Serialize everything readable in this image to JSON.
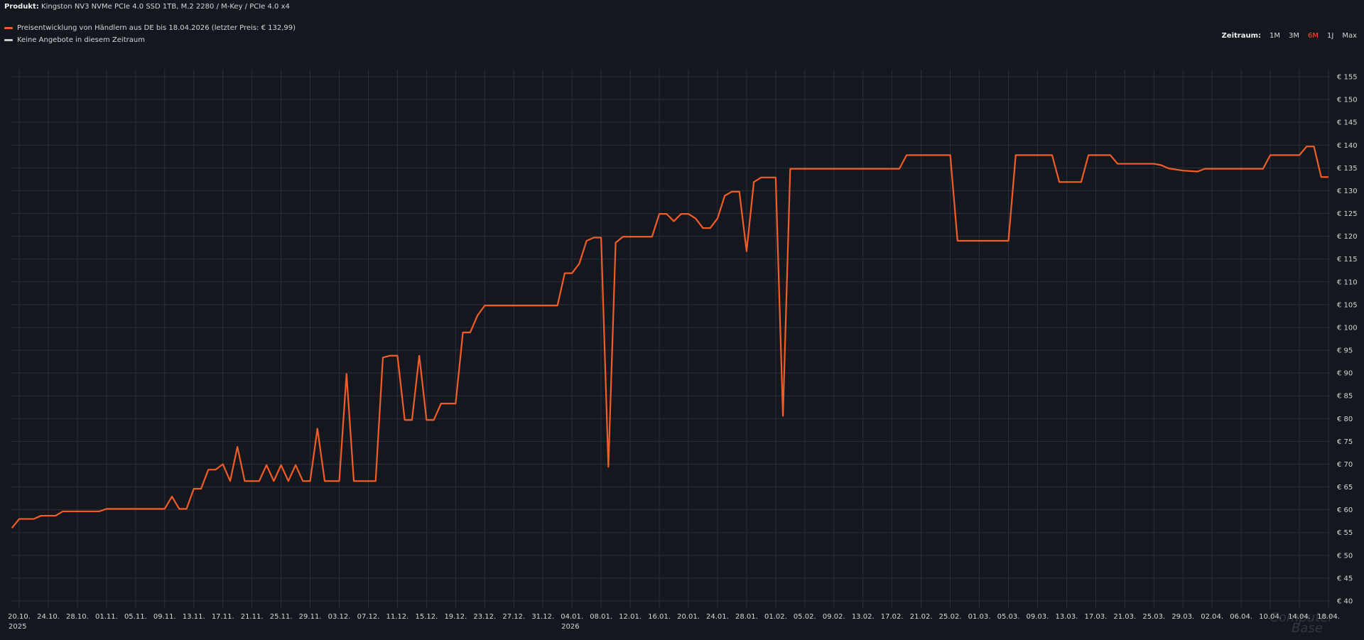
{
  "header": {
    "product_label": "Produkt:",
    "product": "Kingston NV3 NVMe PCIe 4.0 SSD 1TB, M.2 2280 / M-Key / PCIe 4.0 x4"
  },
  "controls": {
    "label": "Zeitraum:",
    "options": [
      "1M",
      "3M",
      "6M",
      "1J",
      "Max"
    ],
    "active": "6M"
  },
  "legend_extra": {
    "label": "Keine Angebote in diesem Zeitraum",
    "color": "#c9c9c9"
  },
  "watermark": [
    "Computer",
    "Base"
  ],
  "chart_data": {
    "type": "line",
    "grid": true,
    "xlim": [
      "2025-10-19",
      "2026-04-18"
    ],
    "ylim": [
      40,
      156
    ],
    "yticks": [
      {
        "value": 155,
        "label": "€ 155"
      },
      {
        "value": 150,
        "label": "€ 150"
      },
      {
        "value": 145,
        "label": "€ 145"
      },
      {
        "value": 140,
        "label": "€ 140"
      },
      {
        "value": 135,
        "label": "€ 135"
      },
      {
        "value": 130,
        "label": "€ 130"
      },
      {
        "value": 125,
        "label": "€ 125"
      },
      {
        "value": 120,
        "label": "€ 120"
      },
      {
        "value": 115,
        "label": "€ 115"
      },
      {
        "value": 110,
        "label": "€ 110"
      },
      {
        "value": 105,
        "label": "€ 105"
      },
      {
        "value": 100,
        "label": "€ 100"
      },
      {
        "value": 95,
        "label": "€ 95"
      },
      {
        "value": 90,
        "label": "€ 90"
      },
      {
        "value": 85,
        "label": "€ 85"
      },
      {
        "value": 80,
        "label": "€ 80"
      },
      {
        "value": 75,
        "label": "€ 75"
      },
      {
        "value": 70,
        "label": "€ 70"
      },
      {
        "value": 65,
        "label": "€ 65"
      },
      {
        "value": 60,
        "label": "€ 60"
      },
      {
        "value": 55,
        "label": "€ 55"
      },
      {
        "value": 50,
        "label": "€ 50"
      },
      {
        "value": 45,
        "label": "€ 45"
      },
      {
        "value": 40,
        "label": "€ 40"
      }
    ],
    "xticks": [
      {
        "value": "2025-10-20",
        "label": "20.10."
      },
      {
        "value": "2025-10-24",
        "label": "24.10."
      },
      {
        "value": "2025-10-28",
        "label": "28.10."
      },
      {
        "value": "2025-11-01",
        "label": "01.11."
      },
      {
        "value": "2025-11-05",
        "label": "05.11."
      },
      {
        "value": "2025-11-09",
        "label": "09.11."
      },
      {
        "value": "2025-11-13",
        "label": "13.11."
      },
      {
        "value": "2025-11-17",
        "label": "17.11."
      },
      {
        "value": "2025-11-21",
        "label": "21.11."
      },
      {
        "value": "2025-11-25",
        "label": "25.11."
      },
      {
        "value": "2025-11-29",
        "label": "29.11."
      },
      {
        "value": "2025-12-03",
        "label": "03.12."
      },
      {
        "value": "2025-12-07",
        "label": "07.12."
      },
      {
        "value": "2025-12-11",
        "label": "11.12."
      },
      {
        "value": "2025-12-15",
        "label": "15.12."
      },
      {
        "value": "2025-12-19",
        "label": "19.12."
      },
      {
        "value": "2025-12-23",
        "label": "23.12."
      },
      {
        "value": "2025-12-27",
        "label": "27.12."
      },
      {
        "value": "2025-12-31",
        "label": "31.12."
      },
      {
        "value": "2026-01-04",
        "label": "04.01."
      },
      {
        "value": "2026-01-08",
        "label": "08.01."
      },
      {
        "value": "2026-01-12",
        "label": "12.01."
      },
      {
        "value": "2026-01-16",
        "label": "16.01."
      },
      {
        "value": "2026-01-20",
        "label": "20.01."
      },
      {
        "value": "2026-01-24",
        "label": "24.01."
      },
      {
        "value": "2026-01-28",
        "label": "28.01."
      },
      {
        "value": "2026-02-01",
        "label": "01.02."
      },
      {
        "value": "2026-02-05",
        "label": "05.02."
      },
      {
        "value": "2026-02-09",
        "label": "09.02."
      },
      {
        "value": "2026-02-13",
        "label": "13.02."
      },
      {
        "value": "2026-02-17",
        "label": "17.02."
      },
      {
        "value": "2026-02-21",
        "label": "21.02."
      },
      {
        "value": "2026-02-25",
        "label": "25.02."
      },
      {
        "value": "2026-03-01",
        "label": "01.03."
      },
      {
        "value": "2026-03-05",
        "label": "05.03."
      },
      {
        "value": "2026-03-09",
        "label": "09.03."
      },
      {
        "value": "2026-03-13",
        "label": "13.03."
      },
      {
        "value": "2026-03-17",
        "label": "17.03."
      },
      {
        "value": "2026-03-21",
        "label": "21.03."
      },
      {
        "value": "2026-03-25",
        "label": "25.03."
      },
      {
        "value": "2026-03-29",
        "label": "29.03."
      },
      {
        "value": "2026-04-02",
        "label": "02.04."
      },
      {
        "value": "2026-04-06",
        "label": "06.04."
      },
      {
        "value": "2026-04-10",
        "label": "10.04."
      },
      {
        "value": "2026-04-14",
        "label": "14.04."
      },
      {
        "value": "2026-04-18",
        "label": "18.04."
      }
    ],
    "x_year_labels": [
      {
        "value": "2025-10-20",
        "label": "2025"
      },
      {
        "value": "2026-01-04",
        "label": "2026"
      }
    ],
    "x": [
      "2025-10-19",
      "2025-10-20",
      "2025-10-22",
      "2025-10-23",
      "2025-10-25",
      "2025-10-26",
      "2025-10-31",
      "2025-11-01",
      "2025-11-09",
      "2025-11-10",
      "2025-11-11",
      "2025-11-12",
      "2025-11-13",
      "2025-11-14",
      "2025-11-15",
      "2025-11-16",
      "2025-11-17",
      "2025-11-18",
      "2025-11-19",
      "2025-11-20",
      "2025-11-22",
      "2025-11-23",
      "2025-11-24",
      "2025-11-25",
      "2025-11-26",
      "2025-11-27",
      "2025-11-28",
      "2025-11-29",
      "2025-11-30",
      "2025-12-01",
      "2025-12-03",
      "2025-12-04",
      "2025-12-05",
      "2025-12-08",
      "2025-12-09",
      "2025-12-10",
      "2025-12-11",
      "2025-12-12",
      "2025-12-13",
      "2025-12-14",
      "2025-12-15",
      "2025-12-16",
      "2025-12-17",
      "2025-12-19",
      "2025-12-20",
      "2025-12-21",
      "2025-12-22",
      "2025-12-23",
      "2026-01-02",
      "2026-01-03",
      "2026-01-04",
      "2026-01-05",
      "2026-01-06",
      "2026-01-07",
      "2026-01-08",
      "2026-01-09",
      "2026-01-10",
      "2026-01-11",
      "2026-01-15",
      "2026-01-16",
      "2026-01-17",
      "2026-01-18",
      "2026-01-19",
      "2026-01-20",
      "2026-01-21",
      "2026-01-22",
      "2026-01-23",
      "2026-01-24",
      "2026-01-25",
      "2026-01-26",
      "2026-01-27",
      "2026-01-28",
      "2026-01-29",
      "2026-01-30",
      "2026-02-01",
      "2026-02-02",
      "2026-02-03",
      "2026-02-18",
      "2026-02-19",
      "2026-02-25",
      "2026-02-26",
      "2026-03-05",
      "2026-03-06",
      "2026-03-11",
      "2026-03-12",
      "2026-03-15",
      "2026-03-16",
      "2026-03-19",
      "2026-03-20",
      "2026-03-25",
      "2026-03-26",
      "2026-03-27",
      "2026-03-29",
      "2026-03-31",
      "2026-04-01",
      "2026-04-09",
      "2026-04-10",
      "2026-04-14",
      "2026-04-15",
      "2026-04-16",
      "2026-04-17",
      "2026-04-18"
    ],
    "series": [
      {
        "name": "Preisentwicklung von Händlern aus DE bis 18.04.2026 (letzter Preis: € 132,99)",
        "color": "#f25c27",
        "values": [
          56.0,
          57.99,
          57.99,
          58.69,
          58.69,
          59.64,
          59.64,
          60.2,
          60.2,
          62.9,
          60.2,
          60.2,
          64.6,
          64.6,
          68.8,
          68.8,
          70.0,
          66.3,
          73.8,
          66.3,
          66.3,
          69.8,
          66.3,
          69.8,
          66.3,
          69.8,
          66.3,
          66.3,
          77.8,
          66.3,
          66.3,
          89.8,
          66.3,
          66.3,
          93.4,
          93.8,
          93.8,
          79.7,
          79.7,
          93.8,
          79.7,
          79.7,
          83.3,
          83.3,
          98.9,
          98.9,
          102.6,
          104.8,
          104.8,
          111.9,
          111.9,
          114.0,
          119.0,
          119.7,
          119.7,
          69.4,
          118.6,
          119.9,
          119.9,
          124.9,
          124.9,
          123.3,
          124.9,
          124.9,
          123.9,
          121.8,
          121.8,
          123.9,
          128.9,
          129.8,
          129.8,
          116.7,
          131.9,
          132.9,
          132.9,
          80.6,
          134.8,
          134.8,
          137.8,
          137.8,
          119.0,
          119.0,
          137.8,
          137.8,
          131.9,
          131.9,
          137.8,
          137.8,
          135.9,
          135.9,
          135.6,
          134.9,
          134.4,
          134.2,
          134.8,
          134.8,
          137.8,
          137.8,
          139.7,
          139.7,
          132.99,
          132.99
        ]
      }
    ]
  }
}
